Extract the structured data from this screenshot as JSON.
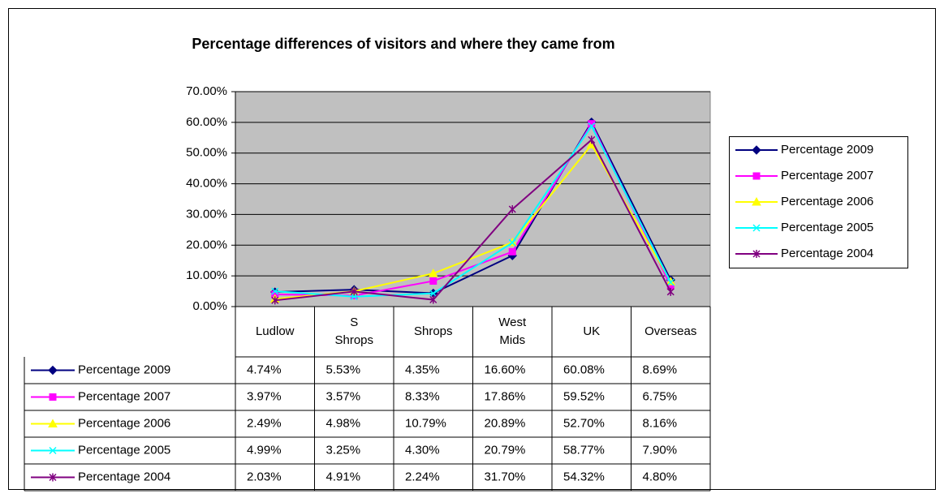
{
  "chart_data": {
    "type": "line",
    "title": "Percentage differences of visitors and where they came from",
    "categories": [
      "Ludlow",
      "S Shrops",
      "Shrops",
      "West Mids",
      "UK",
      "Overseas"
    ],
    "ylim": [
      0,
      70
    ],
    "yticks": [
      {
        "value": 0,
        "label": "0.00%"
      },
      {
        "value": 10,
        "label": "10.00%"
      },
      {
        "value": 20,
        "label": "20.00%"
      },
      {
        "value": 30,
        "label": "30.00%"
      },
      {
        "value": 40,
        "label": "40.00%"
      },
      {
        "value": 50,
        "label": "50.00%"
      },
      {
        "value": 60,
        "label": "60.00%"
      },
      {
        "value": 70,
        "label": "70.00%"
      }
    ],
    "grid": true,
    "legend": "right",
    "plot_background": "#c0c0c0",
    "series": [
      {
        "name": "Percentage 2009",
        "color": "#000080",
        "marker": "diamond",
        "values": [
          4.74,
          5.53,
          4.35,
          16.6,
          60.08,
          8.69
        ],
        "value_labels": [
          "4.74%",
          "5.53%",
          "4.35%",
          "16.60%",
          "60.08%",
          "8.69%"
        ]
      },
      {
        "name": "Percentage 2007",
        "color": "#ff00ff",
        "marker": "square",
        "values": [
          3.97,
          3.57,
          8.33,
          17.86,
          59.52,
          6.75
        ],
        "value_labels": [
          "3.97%",
          "3.57%",
          "8.33%",
          "17.86%",
          "59.52%",
          "6.75%"
        ]
      },
      {
        "name": "Percentage 2006",
        "color": "#ffff00",
        "marker": "triangle",
        "values": [
          2.49,
          4.98,
          10.79,
          20.89,
          52.7,
          8.16
        ],
        "value_labels": [
          "2.49%",
          "4.98%",
          "10.79%",
          "20.89%",
          "52.70%",
          "8.16%"
        ]
      },
      {
        "name": "Percentage 2005",
        "color": "#00ffff",
        "marker": "x",
        "values": [
          4.99,
          3.25,
          4.3,
          20.79,
          58.77,
          7.9
        ],
        "value_labels": [
          "4.99%",
          "3.25%",
          "4.30%",
          "20.79%",
          "58.77%",
          "7.90%"
        ]
      },
      {
        "name": "Percentage 2004",
        "color": "#800080",
        "marker": "star",
        "values": [
          2.03,
          4.91,
          2.24,
          31.7,
          54.32,
          4.8
        ],
        "value_labels": [
          "2.03%",
          "4.91%",
          "2.24%",
          "31.70%",
          "54.32%",
          "4.80%"
        ]
      }
    ]
  }
}
